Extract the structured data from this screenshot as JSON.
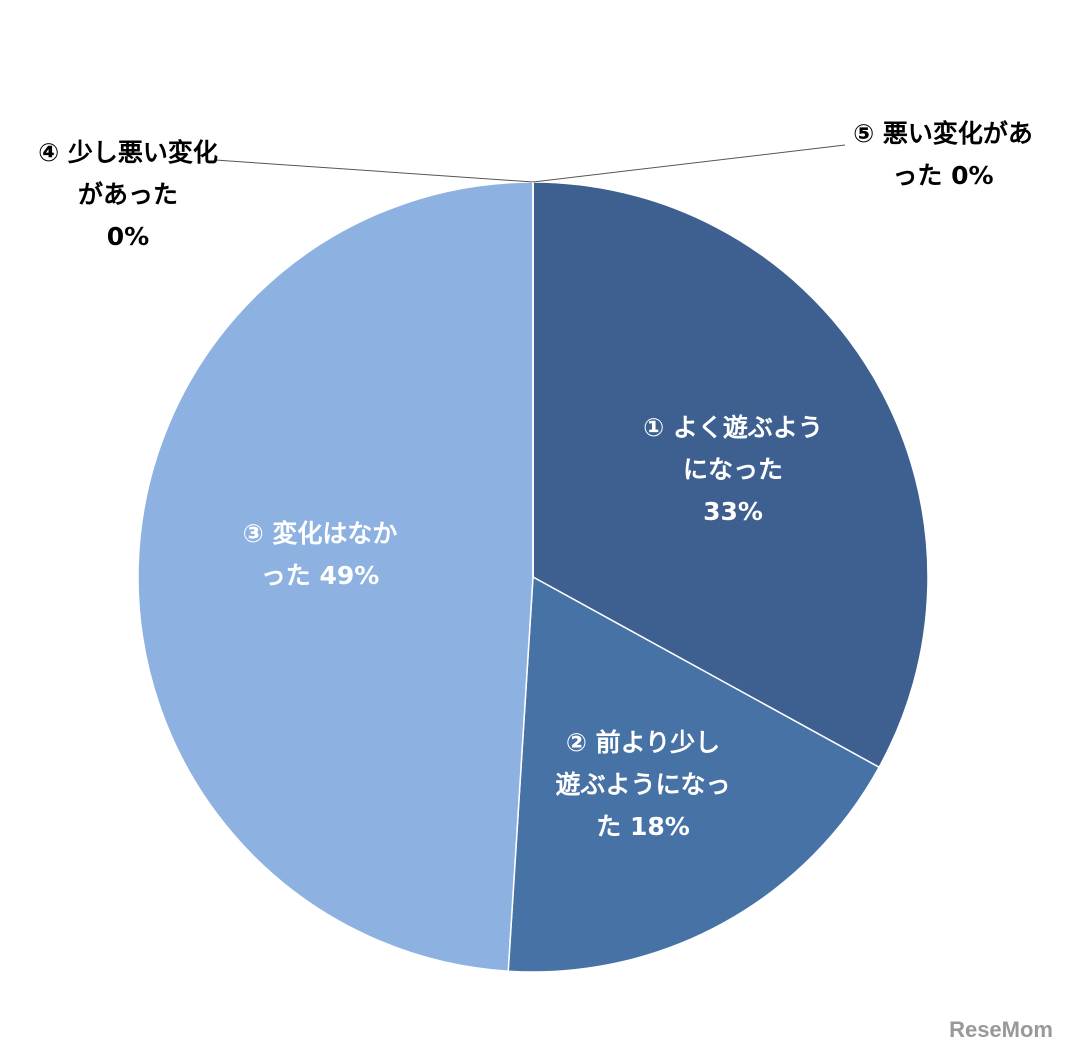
{
  "chart_data": {
    "type": "pie",
    "categories": [
      "① よく遊ぶようになった",
      "② 前より少し遊ぶようになった",
      "③ 変化はなかった",
      "④ 少し悪い変化があった",
      "⑤ 悪い変化があった"
    ],
    "values": [
      33,
      18,
      49,
      0,
      0
    ],
    "value_labels": [
      "33%",
      "18%",
      "49%",
      "0%",
      "0%"
    ],
    "colors": [
      "#3d6090",
      "#4672a6",
      "#8db1e0",
      "#8db1e0",
      "#3d6090"
    ],
    "watermark": "ReseMom"
  }
}
